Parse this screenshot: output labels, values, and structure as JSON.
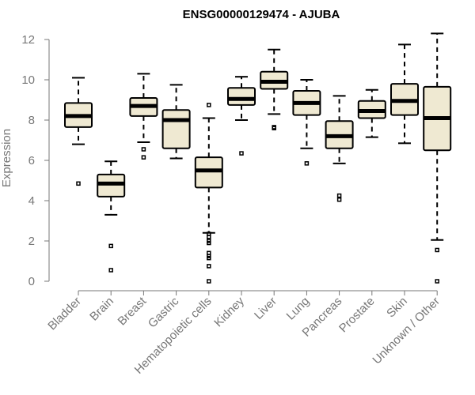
{
  "chart_data": {
    "type": "boxplot",
    "title": "ENSG00000129474 - AJUBA",
    "xlabel": "",
    "ylabel": "Expression",
    "ylim": [
      0,
      12
    ],
    "yticks": [
      0,
      2,
      4,
      6,
      8,
      10,
      12
    ],
    "box_fill": "#efe9d2",
    "series": [
      {
        "category": "Bladder",
        "whisker_low": 6.8,
        "q1": 7.65,
        "median": 8.2,
        "q3": 8.85,
        "whisker_high": 10.1,
        "outliers": [
          4.85
        ]
      },
      {
        "category": "Brain",
        "whisker_low": 3.3,
        "q1": 4.2,
        "median": 4.85,
        "q3": 5.3,
        "whisker_high": 5.95,
        "outliers": [
          1.75,
          0.55
        ]
      },
      {
        "category": "Breast",
        "whisker_low": 6.9,
        "q1": 8.2,
        "median": 8.7,
        "q3": 9.1,
        "whisker_high": 10.3,
        "outliers": [
          6.55,
          6.15
        ]
      },
      {
        "category": "Gastric",
        "whisker_low": 6.1,
        "q1": 6.6,
        "median": 8.0,
        "q3": 8.5,
        "whisker_high": 9.75,
        "outliers": []
      },
      {
        "category": "Hematopoietic cells",
        "whisker_low": 2.4,
        "q1": 4.65,
        "median": 5.5,
        "q3": 6.15,
        "whisker_high": 8.1,
        "outliers": [
          8.75,
          2.35,
          2.2,
          2.0,
          1.9,
          1.4,
          1.25,
          1.15,
          0.75,
          0.0
        ]
      },
      {
        "category": "Kidney",
        "whisker_low": 8.0,
        "q1": 8.75,
        "median": 9.05,
        "q3": 9.6,
        "whisker_high": 10.15,
        "outliers": [
          6.35
        ]
      },
      {
        "category": "Liver",
        "whisker_low": 8.3,
        "q1": 9.55,
        "median": 9.9,
        "q3": 10.4,
        "whisker_high": 11.5,
        "outliers": [
          7.65,
          7.6
        ]
      },
      {
        "category": "Lung",
        "whisker_low": 6.6,
        "q1": 8.25,
        "median": 8.85,
        "q3": 9.45,
        "whisker_high": 10.0,
        "outliers": [
          5.85
        ]
      },
      {
        "category": "Pancreas",
        "whisker_low": 5.85,
        "q1": 6.6,
        "median": 7.2,
        "q3": 7.95,
        "whisker_high": 9.2,
        "outliers": [
          4.25,
          4.05
        ]
      },
      {
        "category": "Prostate",
        "whisker_low": 7.15,
        "q1": 8.1,
        "median": 8.45,
        "q3": 8.95,
        "whisker_high": 9.5,
        "outliers": []
      },
      {
        "category": "Skin",
        "whisker_low": 6.85,
        "q1": 8.25,
        "median": 8.95,
        "q3": 9.8,
        "whisker_high": 11.75,
        "outliers": []
      },
      {
        "category": "Unknown / Other",
        "whisker_low": 2.05,
        "q1": 6.5,
        "median": 8.1,
        "q3": 9.65,
        "whisker_high": 12.3,
        "outliers": [
          1.55,
          0.0
        ]
      }
    ]
  }
}
